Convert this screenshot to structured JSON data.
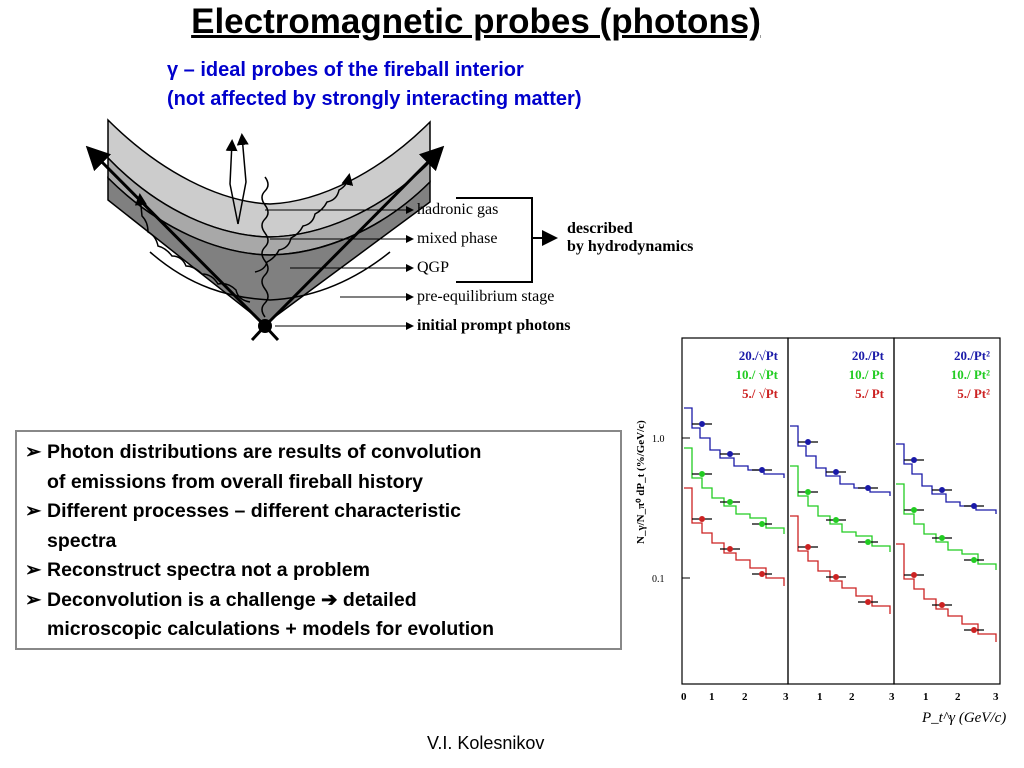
{
  "header": {
    "title": "Electromagnetic probes (photons)",
    "subtitle_line1": "γ – ideal probes of the fireball interior",
    "subtitle_line2": "(not affected by strongly interacting matter)"
  },
  "diagram": {
    "labels": {
      "hadronic_gas": "hadronic gas",
      "mixed_phase": "mixed phase",
      "qgp": "QGP",
      "pre_equilibrium": "pre-equilibrium stage",
      "initial_prompt": "initial prompt photons"
    },
    "described_line1": "described",
    "described_line2": "by hydrodynamics",
    "colors": {
      "hadronic": "#cccccc",
      "mixed": "#a8a8a8",
      "qgp": "#808080"
    }
  },
  "bullets": [
    {
      "line1": "Photon distributions are results of convolution",
      "line2": "of emissions from overall fireball history"
    },
    {
      "line1": "Different processes – different characteristic",
      "line2": "spectra"
    },
    {
      "line1": "Reconstruct spectra not a problem",
      "line2": ""
    },
    {
      "line1": "Deconvolution is a challenge",
      "arrow": "➔",
      "line1_tail": "detailed",
      "line2": "microscopic calculations + models for evolution"
    }
  ],
  "chart_data": {
    "type": "line",
    "ylabel": "N_γ/N_π⁰ dP_t  (%/GeV/c)",
    "xlabel": "P_t^γ (GeV/c)",
    "y_ticks": [
      "1.0",
      "0.1"
    ],
    "x_ticks": [
      "0",
      "1",
      "2",
      "3",
      "1",
      "2",
      "3",
      "1",
      "2",
      "3"
    ],
    "y_scale": "log",
    "panels": [
      {
        "legend": [
          "20./√Pt",
          "10./ √Pt",
          "5./ √Pt"
        ]
      },
      {
        "legend": [
          "20./Pt",
          "10./ Pt",
          "5./ Pt"
        ]
      },
      {
        "legend": [
          "20./Pt²",
          "10./ Pt²",
          "5./ Pt²"
        ]
      }
    ],
    "colors": {
      "blue": "#1a1aa8",
      "green": "#22cc22",
      "red": "#cc2222"
    }
  },
  "footer": {
    "author": "V.I. Kolesnikov"
  }
}
